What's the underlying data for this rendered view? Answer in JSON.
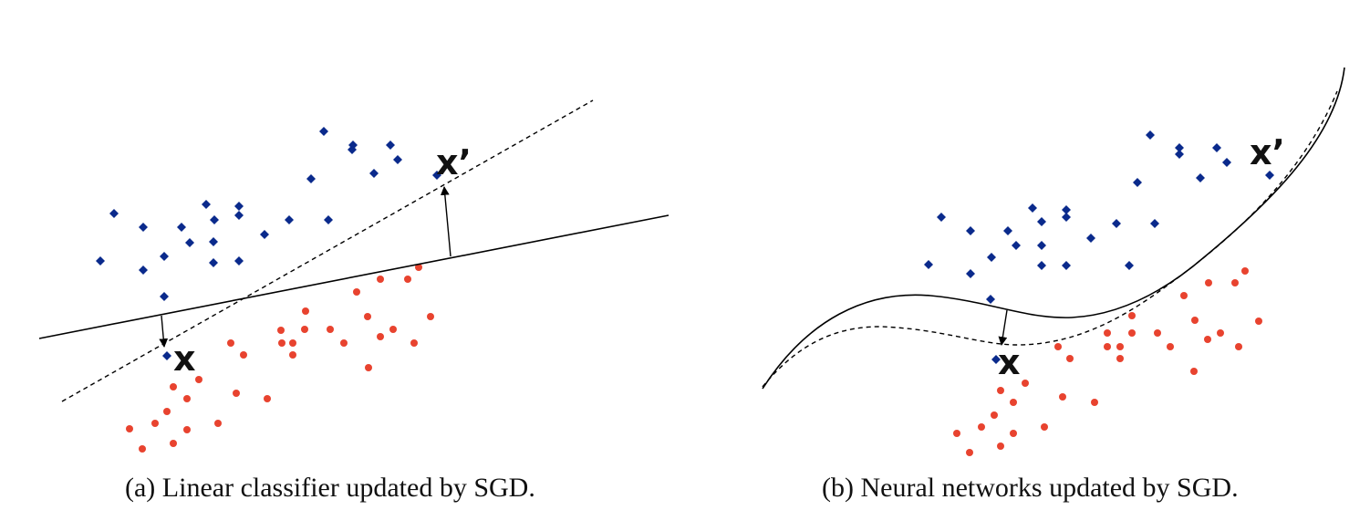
{
  "colors": {
    "class_positive": "#0a2a8c",
    "class_negative": "#e8432f",
    "boundary": "#000000"
  },
  "panels": [
    {
      "id": "a",
      "caption": "(a) Linear classifier updated by SGD.",
      "point_x_label": "x",
      "point_x_adv_label": "x’",
      "boundary_original": "solid line",
      "boundary_updated": "dashed line"
    },
    {
      "id": "b",
      "caption": "(b) Neural networks updated by SGD.",
      "point_x_label": "x",
      "point_x_adv_label": "x’",
      "boundary_original": "solid curve",
      "boundary_updated": "dashed curve"
    }
  ]
}
